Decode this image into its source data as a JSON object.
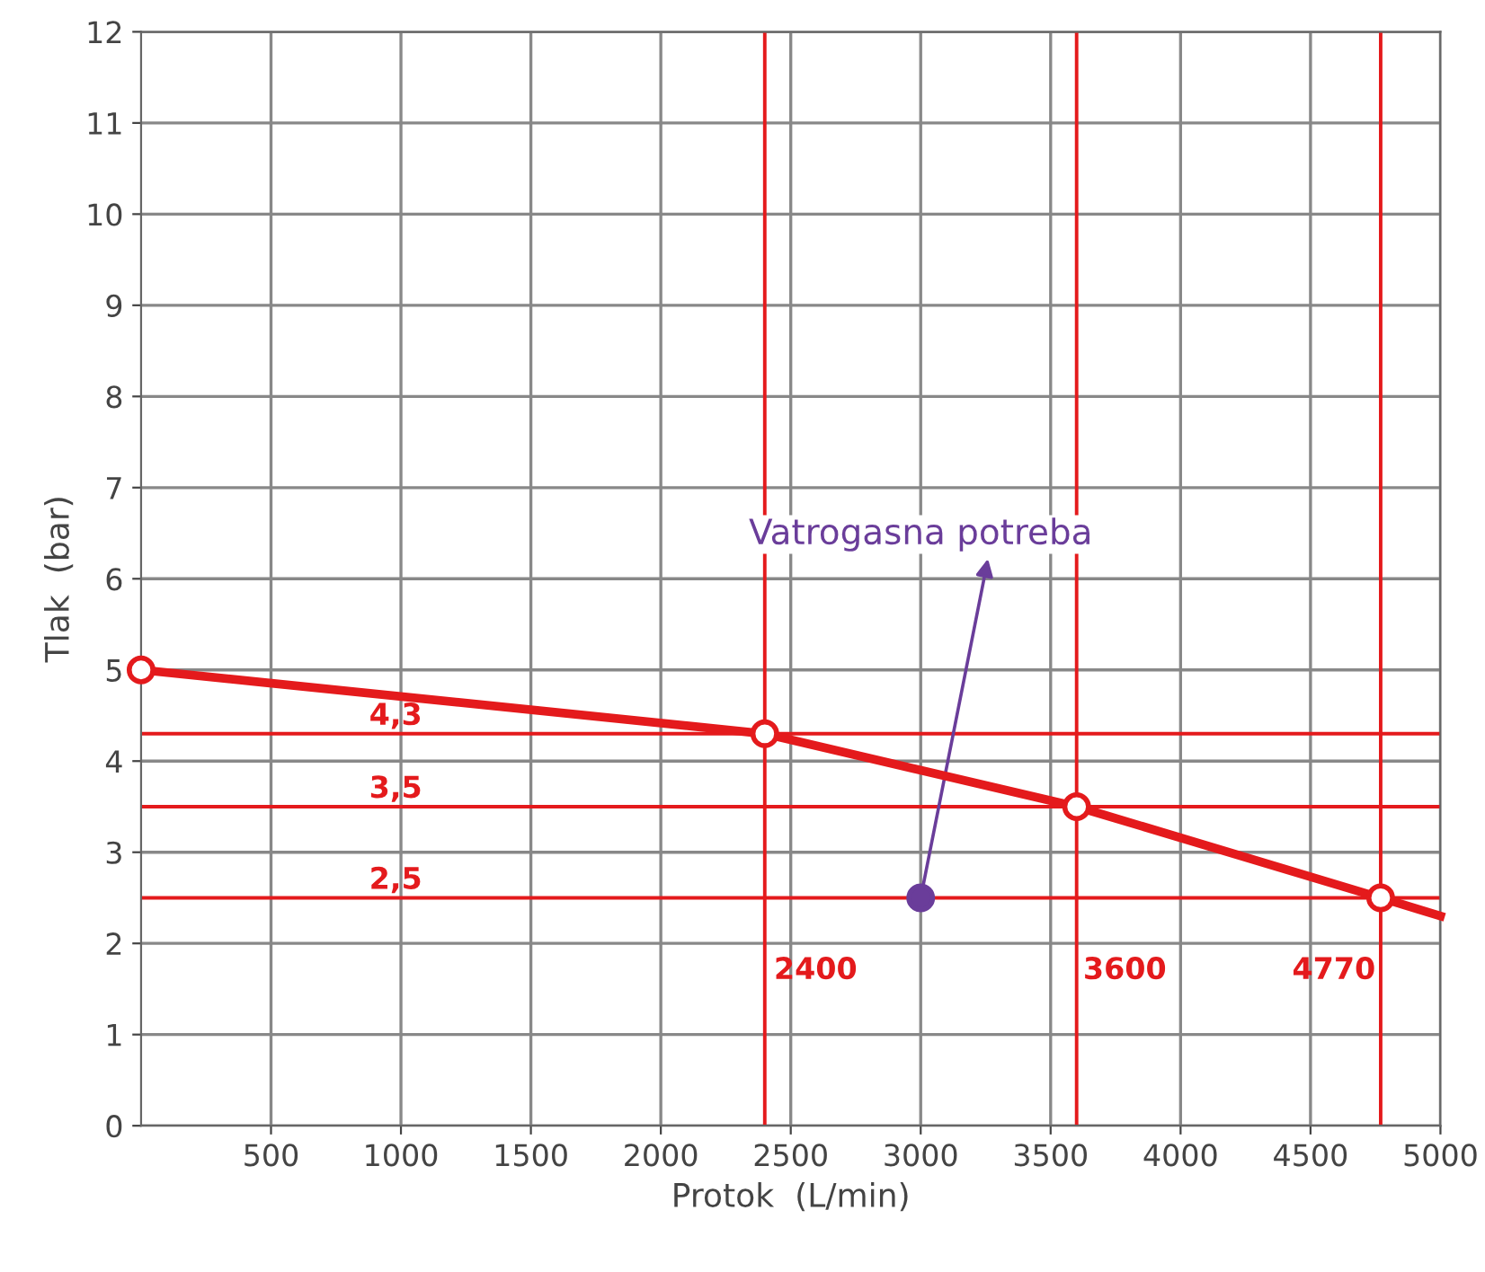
{
  "chart_data": {
    "type": "line",
    "xlabel": "Protok  (L/min)",
    "ylabel": "Tlak  (bar)",
    "xlim": [
      0,
      5000
    ],
    "xticks": [
      500,
      1000,
      1500,
      2000,
      2500,
      3000,
      3500,
      4000,
      4500,
      5000
    ],
    "ylim": [
      0,
      12
    ],
    "yticks": [
      0,
      1,
      2,
      3,
      4,
      5,
      6,
      7,
      8,
      9,
      10,
      11,
      12
    ],
    "grid": true,
    "series": [
      {
        "color": "#e41a1c",
        "x": [
          0,
          2400,
          3600,
          4770,
          5000
        ],
        "values": [
          5,
          4.3,
          3.5,
          2.5,
          2.3
        ],
        "marker": "none"
      },
      {
        "type": "scatter",
        "color": "#e41a1c",
        "x": [
          0,
          2400,
          3600,
          4770
        ],
        "values": [
          5,
          4.3,
          3.5,
          2.5
        ],
        "marker": "circle"
      },
      {
        "type": "scatter",
        "color": "#6a3d9a",
        "x": [
          3000
        ],
        "values": [
          2.5
        ],
        "marker": "circle"
      }
    ],
    "ref_lines": [
      {
        "axis": "y",
        "value": 4.3,
        "label": "4,3",
        "color": "#e41a1c"
      },
      {
        "axis": "y",
        "value": 3.5,
        "label": "3,5",
        "color": "#e41a1c"
      },
      {
        "axis": "y",
        "value": 2.5,
        "label": "2,5",
        "color": "#e41a1c"
      },
      {
        "axis": "x",
        "value": 2400,
        "label": "2400",
        "color": "#e41a1c"
      },
      {
        "axis": "x",
        "value": 3600,
        "label": "3600",
        "color": "#e41a1c"
      },
      {
        "axis": "x",
        "value": 4770,
        "label": "4770",
        "color": "#e41a1c"
      }
    ],
    "annotations": [
      {
        "text": "Vatrogasna potreba",
        "x": 3000,
        "y": 2.5
      }
    ]
  }
}
